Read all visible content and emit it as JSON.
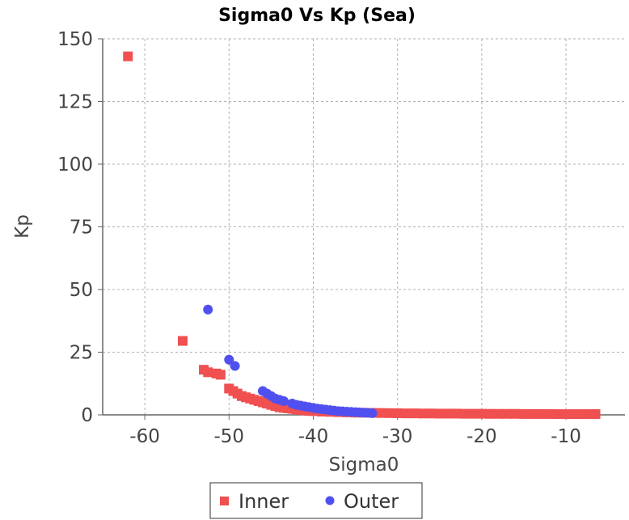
{
  "chart_data": {
    "type": "scatter",
    "title": "Sigma0 Vs Kp (Sea)",
    "xlabel": "Sigma0",
    "ylabel": "Kp",
    "xlim": [
      -65,
      -3
    ],
    "ylim": [
      0,
      150
    ],
    "xticks": [
      -60,
      -50,
      -40,
      -30,
      -20,
      -10
    ],
    "yticks": [
      0,
      25,
      50,
      75,
      100,
      125,
      150
    ],
    "grid": true,
    "legend_position": "bottom-center",
    "series": [
      {
        "name": "Inner",
        "color": "#f05050",
        "marker": "square",
        "points": [
          [
            -62,
            143
          ],
          [
            -55.5,
            29.5
          ],
          [
            -53,
            18
          ],
          [
            -52.5,
            17
          ],
          [
            -51.5,
            16.5
          ],
          [
            -51,
            16
          ],
          [
            -50,
            10.5
          ],
          [
            -49.5,
            9.5
          ],
          [
            -49,
            8.5
          ],
          [
            -48.5,
            7.5
          ],
          [
            -48,
            7
          ],
          [
            -47.5,
            6.5
          ],
          [
            -47,
            6
          ],
          [
            -46.5,
            5.5
          ],
          [
            -46,
            5
          ],
          [
            -45.5,
            4.5
          ],
          [
            -45,
            4
          ],
          [
            -44.5,
            3.5
          ],
          [
            -44,
            3
          ],
          [
            -43.5,
            2.8
          ],
          [
            -43,
            2.6
          ],
          [
            -42.5,
            2.4
          ],
          [
            -42,
            2.2
          ],
          [
            -41.5,
            2
          ],
          [
            -41,
            1.8
          ],
          [
            -40.5,
            1.6
          ],
          [
            -40,
            1.5
          ],
          [
            -39,
            1.3
          ],
          [
            -38,
            1.2
          ],
          [
            -37,
            1.1
          ],
          [
            -36,
            1
          ],
          [
            -35,
            0.9
          ],
          [
            -34,
            0.85
          ],
          [
            -33,
            0.8
          ],
          [
            -32,
            0.75
          ],
          [
            -31,
            0.7
          ],
          [
            -30,
            0.65
          ],
          [
            -29,
            0.6
          ],
          [
            -28,
            0.6
          ],
          [
            -27,
            0.55
          ],
          [
            -26,
            0.55
          ],
          [
            -25,
            0.5
          ],
          [
            -24,
            0.5
          ],
          [
            -23,
            0.5
          ],
          [
            -22,
            0.45
          ],
          [
            -21,
            0.45
          ],
          [
            -20,
            0.45
          ],
          [
            -19,
            0.4
          ],
          [
            -18,
            0.4
          ],
          [
            -17,
            0.4
          ],
          [
            -16,
            0.4
          ],
          [
            -15,
            0.35
          ],
          [
            -14,
            0.35
          ],
          [
            -13,
            0.35
          ],
          [
            -12,
            0.35
          ],
          [
            -11,
            0.3
          ],
          [
            -10,
            0.3
          ],
          [
            -9,
            0.3
          ],
          [
            -8,
            0.3
          ],
          [
            -7,
            0.3
          ],
          [
            -6.5,
            0.3
          ]
        ]
      },
      {
        "name": "Outer",
        "color": "#5050f0",
        "marker": "circle",
        "points": [
          [
            -52.5,
            42
          ],
          [
            -50,
            22
          ],
          [
            -49.3,
            19.5
          ],
          [
            -46,
            9.5
          ],
          [
            -45.5,
            8.5
          ],
          [
            -45,
            7.5
          ],
          [
            -44.5,
            6.5
          ],
          [
            -44,
            6
          ],
          [
            -43.5,
            5.5
          ],
          [
            -42.5,
            4.5
          ],
          [
            -42,
            4
          ],
          [
            -41.5,
            3.7
          ],
          [
            -41,
            3.4
          ],
          [
            -40.5,
            3.1
          ],
          [
            -40,
            2.8
          ],
          [
            -39.5,
            2.5
          ],
          [
            -39,
            2.3
          ],
          [
            -38.5,
            2.1
          ],
          [
            -38,
            1.9
          ],
          [
            -37.5,
            1.7
          ],
          [
            -37,
            1.5
          ],
          [
            -36.5,
            1.4
          ],
          [
            -36,
            1.3
          ],
          [
            -35.5,
            1.2
          ],
          [
            -35,
            1.1
          ],
          [
            -34.5,
            1
          ],
          [
            -34,
            0.9
          ],
          [
            -33.5,
            0.8
          ],
          [
            -33,
            0.7
          ]
        ]
      }
    ]
  }
}
